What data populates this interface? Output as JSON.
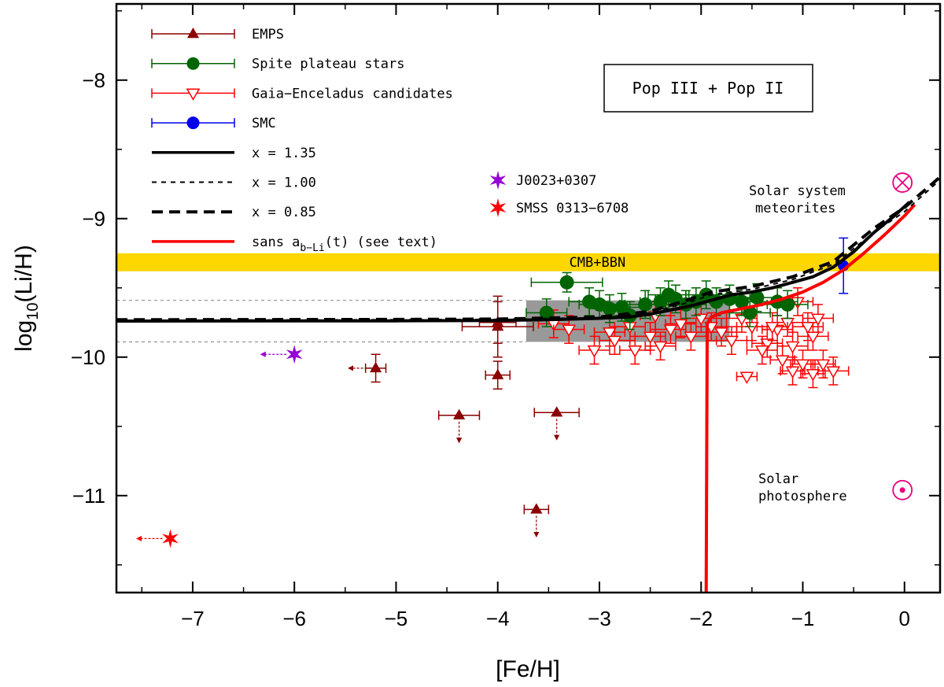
{
  "chart_data": {
    "type": "scatter",
    "xlabel": "[Fe/H]",
    "ylabel_main": "log",
    "ylabel_sub": "10",
    "ylabel_tail": "(Li/H)",
    "xlim": [
      -7.75,
      0.35
    ],
    "ylim": [
      -11.7,
      -7.45
    ],
    "x_ticks": [
      -7,
      -6,
      -5,
      -4,
      -3,
      -2,
      -1,
      0
    ],
    "x_tick_labels": [
      "−7",
      "−6",
      "−5",
      "−4",
      "−3",
      "−2",
      "−1",
      "0"
    ],
    "y_ticks": [
      -8,
      -9,
      -10,
      -11
    ],
    "y_tick_labels": [
      "−8",
      "−9",
      "−10",
      "−11"
    ],
    "title_box": "Pop III + Pop II",
    "band_label": "CMB+BBN",
    "bbn_band": [
      -9.38,
      -9.25
    ],
    "spite_box": {
      "x": [
        -3.72,
        -1.72
      ],
      "y": [
        -9.89,
        -9.59
      ]
    },
    "dotted_lines_y": [
      -9.59,
      -9.89
    ],
    "legend": [
      {
        "label": "EMPS",
        "color": "#8b0000",
        "marker": "triangle"
      },
      {
        "label": "Spite plateau stars",
        "color": "#006400",
        "marker": "circle"
      },
      {
        "label": "Gaia−Enceladus candidates",
        "color": "#ff0000",
        "marker": "open-triangle-down"
      },
      {
        "label": "SMC",
        "color": "#0000ee",
        "marker": "circle"
      },
      {
        "label": "x = 1.35",
        "color": "#000000",
        "style": "solid"
      },
      {
        "label": "x = 1.00",
        "color": "#000000",
        "style": "dotted"
      },
      {
        "label": "x = 0.85",
        "color": "#000000",
        "style": "dashed"
      },
      {
        "label_main": "sans a",
        "label_sub": "b−Li",
        "label_tail": "(t)  (see text)",
        "color": "#ff0000",
        "style": "solid"
      }
    ],
    "special_stars": [
      {
        "label": "J0023+0307",
        "color": "#9400d3",
        "x": -6.0,
        "y": -9.98,
        "upper_limit_feh": true
      },
      {
        "label": "SMSS 0313−6708",
        "color": "#ff0000",
        "x": -7.22,
        "y": -11.31,
        "upper_limit_feh": true
      }
    ],
    "annotations": {
      "meteorites_line1": "Solar system",
      "meteorites_line2": "meteorites",
      "photosphere_line1": "Solar",
      "photosphere_line2": "photosphere"
    },
    "meteorites_point": {
      "x": -0.02,
      "y": -8.74
    },
    "photosphere_point": {
      "x": -0.02,
      "y": -10.96
    },
    "series": [
      {
        "name": "EMPS",
        "color": "#8b0000",
        "points": [
          {
            "x": -5.2,
            "y": -10.08,
            "xerr": 0.1,
            "yerr": 0.1,
            "xlimit": true
          },
          {
            "x": -4.0,
            "y": -9.78,
            "xerr": 0.35,
            "yerr": 0.22
          },
          {
            "x": -4.0,
            "y": -9.75,
            "xerr": 0.18,
            "yerr": 0.15
          },
          {
            "x": -4.0,
            "y": -10.13,
            "xerr": 0.12,
            "yerr": 0.1
          },
          {
            "x": -4.38,
            "y": -10.42,
            "xerr": 0.2,
            "yerr": 0.0,
            "ylimit": true
          },
          {
            "x": -3.42,
            "y": -10.4,
            "xerr": 0.22,
            "yerr": 0.0,
            "ylimit": true
          },
          {
            "x": -3.62,
            "y": -11.1,
            "xerr": 0.12,
            "yerr": 0.0,
            "ylimit": true
          }
        ]
      },
      {
        "name": "Spite plateau stars",
        "color": "#006400",
        "points": [
          {
            "x": -3.32,
            "y": -9.46,
            "xerr": 0.35,
            "yerr": 0.07
          },
          {
            "x": -3.52,
            "y": -9.68,
            "xerr": 0.2,
            "yerr": 0.1
          },
          {
            "x": -3.1,
            "y": -9.6,
            "xerr": 0.2,
            "yerr": 0.1
          },
          {
            "x": -3.0,
            "y": -9.62,
            "xerr": 0.2,
            "yerr": 0.1
          },
          {
            "x": -2.9,
            "y": -9.65,
            "xerr": 0.2,
            "yerr": 0.1
          },
          {
            "x": -2.78,
            "y": -9.64,
            "xerr": 0.2,
            "yerr": 0.1
          },
          {
            "x": -2.7,
            "y": -9.7,
            "xerr": 0.2,
            "yerr": 0.1
          },
          {
            "x": -2.55,
            "y": -9.62,
            "xerr": 0.2,
            "yerr": 0.1
          },
          {
            "x": -2.4,
            "y": -9.6,
            "xerr": 0.2,
            "yerr": 0.1
          },
          {
            "x": -2.32,
            "y": -9.55,
            "xerr": 0.2,
            "yerr": 0.1
          },
          {
            "x": -2.25,
            "y": -9.58,
            "xerr": 0.2,
            "yerr": 0.1
          },
          {
            "x": -2.15,
            "y": -9.62,
            "xerr": 0.2,
            "yerr": 0.1
          },
          {
            "x": -2.05,
            "y": -9.6,
            "xerr": 0.2,
            "yerr": 0.1
          },
          {
            "x": -1.95,
            "y": -9.55,
            "xerr": 0.2,
            "yerr": 0.1
          },
          {
            "x": -1.85,
            "y": -9.6,
            "xerr": 0.2,
            "yerr": 0.1
          },
          {
            "x": -1.72,
            "y": -9.58,
            "xerr": 0.2,
            "yerr": 0.1
          },
          {
            "x": -1.6,
            "y": -9.6,
            "xerr": 0.2,
            "yerr": 0.1
          },
          {
            "x": -1.52,
            "y": -9.68,
            "xerr": 0.2,
            "yerr": 0.1
          },
          {
            "x": -1.45,
            "y": -9.57,
            "xerr": 0.2,
            "yerr": 0.1
          },
          {
            "x": -1.25,
            "y": -9.6,
            "xerr": 0.2,
            "yerr": 0.1
          },
          {
            "x": -1.15,
            "y": -9.62,
            "xerr": 0.2,
            "yerr": 0.1
          }
        ]
      },
      {
        "name": "Gaia−Enceladus candidates",
        "color": "#ff0000",
        "points": [
          {
            "x": -3.45,
            "y": -9.76,
            "xerr": 0.15,
            "yerr": 0.1
          },
          {
            "x": -3.3,
            "y": -9.8,
            "xerr": 0.15,
            "yerr": 0.1
          },
          {
            "x": -3.05,
            "y": -9.95,
            "xerr": 0.15,
            "yerr": 0.1
          },
          {
            "x": -2.9,
            "y": -9.82,
            "xerr": 0.15,
            "yerr": 0.1
          },
          {
            "x": -2.7,
            "y": -9.78,
            "xerr": 0.15,
            "yerr": 0.1
          },
          {
            "x": -2.65,
            "y": -9.95,
            "xerr": 0.15,
            "yerr": 0.1
          },
          {
            "x": -2.5,
            "y": -9.85,
            "xerr": 0.15,
            "yerr": 0.1
          },
          {
            "x": -2.4,
            "y": -9.92,
            "xerr": 0.15,
            "yerr": 0.1
          },
          {
            "x": -2.3,
            "y": -9.8,
            "xerr": 0.15,
            "yerr": 0.1
          },
          {
            "x": -2.2,
            "y": -9.76,
            "xerr": 0.15,
            "yerr": 0.1
          },
          {
            "x": -2.1,
            "y": -9.85,
            "xerr": 0.15,
            "yerr": 0.1
          },
          {
            "x": -2.0,
            "y": -9.72,
            "xerr": 0.15,
            "yerr": 0.1
          },
          {
            "x": -1.9,
            "y": -9.78,
            "xerr": 0.15,
            "yerr": 0.1
          },
          {
            "x": -1.8,
            "y": -9.82,
            "xerr": 0.15,
            "yerr": 0.1
          },
          {
            "x": -1.7,
            "y": -9.88,
            "xerr": 0.15,
            "yerr": 0.1
          },
          {
            "x": -1.6,
            "y": -9.72,
            "xerr": 0.15,
            "yerr": 0.1
          },
          {
            "x": -1.5,
            "y": -9.78,
            "xerr": 0.15,
            "yerr": 0.1
          },
          {
            "x": -1.35,
            "y": -9.9,
            "xerr": 0.15,
            "yerr": 0.1
          },
          {
            "x": -1.25,
            "y": -9.8,
            "xerr": 0.15,
            "yerr": 0.1
          },
          {
            "x": -1.15,
            "y": -9.75,
            "xerr": 0.15,
            "yerr": 0.1
          },
          {
            "x": -1.1,
            "y": -9.92,
            "xerr": 0.15,
            "yerr": 0.1
          },
          {
            "x": -1.05,
            "y": -9.6,
            "xerr": 0.15,
            "yerr": 0.1
          },
          {
            "x": -0.95,
            "y": -9.78,
            "xerr": 0.15,
            "yerr": 0.1
          },
          {
            "x": -0.9,
            "y": -9.85,
            "xerr": 0.15,
            "yerr": 0.1
          },
          {
            "x": -0.85,
            "y": -9.72,
            "xerr": 0.15,
            "yerr": 0.1
          },
          {
            "x": -1.2,
            "y": -10.02,
            "xerr": 0.12,
            "yerr": 0.1
          },
          {
            "x": -1.1,
            "y": -10.1,
            "xerr": 0.12,
            "yerr": 0.1
          },
          {
            "x": -1.0,
            "y": -10.05,
            "xerr": 0.12,
            "yerr": 0.1
          },
          {
            "x": -0.9,
            "y": -10.12,
            "xerr": 0.12,
            "yerr": 0.1
          },
          {
            "x": -0.8,
            "y": -10.05,
            "xerr": 0.12,
            "yerr": 0.1
          },
          {
            "x": -0.7,
            "y": -10.1,
            "xerr": 0.15,
            "yerr": 0.1
          },
          {
            "x": -1.3,
            "y": -9.78,
            "xerr": 0.15,
            "yerr": 0.1
          },
          {
            "x": -1.55,
            "y": -10.14,
            "xerr": 0.1,
            "yerr": 0.0
          },
          {
            "x": -1.4,
            "y": -9.95,
            "xerr": 0.15,
            "yerr": 0.1
          },
          {
            "x": -2.45,
            "y": -9.7,
            "xerr": 0.15,
            "yerr": 0.1
          },
          {
            "x": -2.85,
            "y": -9.88,
            "xerr": 0.15,
            "yerr": 0.1
          }
        ]
      },
      {
        "name": "SMC",
        "color": "#0000ee",
        "points": [
          {
            "x": -0.6,
            "y": -9.34,
            "xerr": 0.0,
            "yerr": 0.2
          }
        ]
      }
    ],
    "model_curves": [
      {
        "name": "x = 1.35",
        "style": "solid",
        "color": "#000000",
        "x": [
          -7.75,
          -5,
          -4,
          -3.5,
          -3,
          -2.7,
          -2.5,
          -2.3,
          -2.1,
          -1.9,
          -1.7,
          -1.5,
          -1.3,
          -1.1,
          -0.9,
          -0.7,
          -0.5,
          -0.3,
          -0.1,
          0.05
        ],
        "y": [
          -9.74,
          -9.738,
          -9.735,
          -9.73,
          -9.72,
          -9.71,
          -9.69,
          -9.66,
          -9.63,
          -9.59,
          -9.55,
          -9.53,
          -9.5,
          -9.46,
          -9.42,
          -9.35,
          -9.24,
          -9.1,
          -8.98,
          -8.88
        ]
      },
      {
        "name": "x = 1.00",
        "style": "dotted",
        "color": "#000000",
        "x": [
          -7.75,
          -5,
          -4,
          -3,
          -2.5,
          -2.1,
          -1.9,
          -1.5,
          -1.1,
          -0.7,
          -0.3,
          0.0,
          0.35
        ],
        "y": [
          -9.735,
          -9.73,
          -9.728,
          -9.715,
          -9.68,
          -9.6,
          -9.55,
          -9.51,
          -9.44,
          -9.33,
          -9.1,
          -8.95,
          -8.72
        ]
      },
      {
        "name": "x = 0.85",
        "style": "dashed",
        "color": "#000000",
        "x": [
          -7.75,
          -5,
          -4,
          -3,
          -2.5,
          -2.1,
          -1.9,
          -1.5,
          -1.1,
          -0.7,
          -0.3,
          0.0,
          0.35
        ],
        "y": [
          -9.73,
          -9.728,
          -9.725,
          -9.71,
          -9.67,
          -9.58,
          -9.53,
          -9.49,
          -9.42,
          -9.31,
          -9.07,
          -8.92,
          -8.7
        ]
      },
      {
        "name": "sans a_b-Li(t)",
        "style": "solid",
        "color": "#ff0000",
        "x": [
          -1.95,
          -1.94,
          -1.9,
          -1.8,
          -1.6,
          -1.4,
          -1.2,
          -1.0,
          -0.8,
          -0.6,
          -0.4,
          -0.2,
          0.0,
          0.1
        ],
        "y": [
          -11.7,
          -9.76,
          -9.71,
          -9.68,
          -9.65,
          -9.62,
          -9.58,
          -9.53,
          -9.46,
          -9.37,
          -9.25,
          -9.12,
          -8.98,
          -8.9
        ]
      }
    ]
  }
}
